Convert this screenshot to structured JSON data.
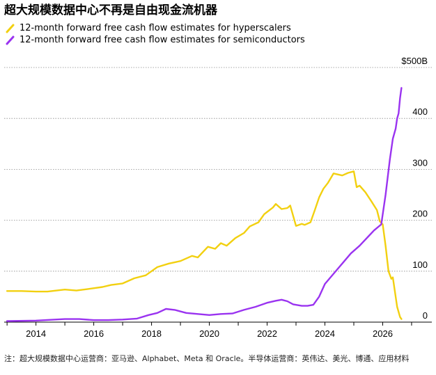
{
  "title": "超大规模数据中心不再是自由现金流机器",
  "legend": {
    "hyperscalers": "12-month forward free cash flow estimates for hyperscalers",
    "semiconductors": "12-month forward free cash flow estimates for semiconductors"
  },
  "colors": {
    "hyperscalers": "#f2d010",
    "semiconductors": "#9a33f0"
  },
  "footnote": "注：超大规模数据中心运营商：亚马逊、Alphabet、Meta 和 Oracle。半导体运营商：英伟达、美光、博通、应用材料",
  "chart_data": {
    "type": "line",
    "title": "超大规模数据中心不再是自由现金流机器",
    "xlabel": "",
    "ylabel": "",
    "x_ticks": [
      "2014",
      "2016",
      "2018",
      "2020",
      "2022",
      "2024",
      "2026"
    ],
    "y_ticks": [
      "0",
      "100",
      "200",
      "300",
      "400",
      "$500B"
    ],
    "xlim": [
      2012.9,
      2027.7
    ],
    "ylim": [
      0,
      500
    ],
    "grid": true,
    "legend_position": "top-left",
    "series": [
      {
        "name": "12-month forward free cash flow estimates for hyperscalers",
        "color": "#f2d010",
        "x": [
          2013.0,
          2013.5,
          2014.0,
          2014.4,
          2015.0,
          2015.4,
          2015.8,
          2016.3,
          2016.6,
          2017.0,
          2017.4,
          2017.8,
          2018.2,
          2018.6,
          2019.0,
          2019.4,
          2019.6,
          2019.95,
          2020.2,
          2020.4,
          2020.6,
          2020.9,
          2021.2,
          2021.4,
          2021.7,
          2021.9,
          2022.2,
          2022.3,
          2022.5,
          2022.7,
          2022.8,
          2023.0,
          2023.2,
          2023.3,
          2023.5,
          2023.65,
          2023.8,
          2023.95,
          2024.1,
          2024.3,
          2024.6,
          2024.8,
          2025.0,
          2025.1,
          2025.2,
          2025.4,
          2025.6,
          2025.8,
          2025.9,
          2026.0,
          2026.1,
          2026.2,
          2026.3,
          2026.35,
          2026.5,
          2026.6,
          2026.65
        ],
        "values": [
          61,
          61,
          60,
          60,
          64,
          62,
          65,
          69,
          73,
          76,
          86,
          92,
          108,
          115,
          120,
          130,
          127,
          148,
          144,
          155,
          150,
          165,
          175,
          188,
          196,
          212,
          225,
          232,
          222,
          224,
          229,
          189,
          193,
          191,
          196,
          220,
          245,
          262,
          273,
          292,
          288,
          293,
          296,
          265,
          268,
          255,
          238,
          220,
          198,
          192,
          150,
          100,
          85,
          88,
          30,
          10,
          6
        ]
      },
      {
        "name": "12-month forward free cash flow estimates for semiconductors",
        "color": "#9a33f0",
        "x": [
          2013.0,
          2014.0,
          2015.0,
          2015.5,
          2016.0,
          2016.5,
          2017.0,
          2017.5,
          2017.9,
          2018.2,
          2018.5,
          2018.8,
          2019.2,
          2019.6,
          2020.0,
          2020.4,
          2020.8,
          2021.2,
          2021.6,
          2022.0,
          2022.3,
          2022.5,
          2022.7,
          2022.9,
          2023.2,
          2023.4,
          2023.6,
          2023.8,
          2024.0,
          2024.3,
          2024.6,
          2024.9,
          2025.2,
          2025.5,
          2025.7,
          2025.95,
          2026.1,
          2026.25,
          2026.35,
          2026.45,
          2026.5,
          2026.55,
          2026.6,
          2026.65
        ],
        "values": [
          2,
          3,
          6,
          6,
          4,
          4,
          5,
          7,
          14,
          18,
          26,
          24,
          18,
          16,
          14,
          16,
          17,
          24,
          30,
          38,
          42,
          44,
          41,
          35,
          32,
          32,
          34,
          50,
          75,
          95,
          115,
          135,
          150,
          168,
          180,
          192,
          250,
          320,
          360,
          380,
          400,
          410,
          440,
          460
        ]
      }
    ]
  }
}
